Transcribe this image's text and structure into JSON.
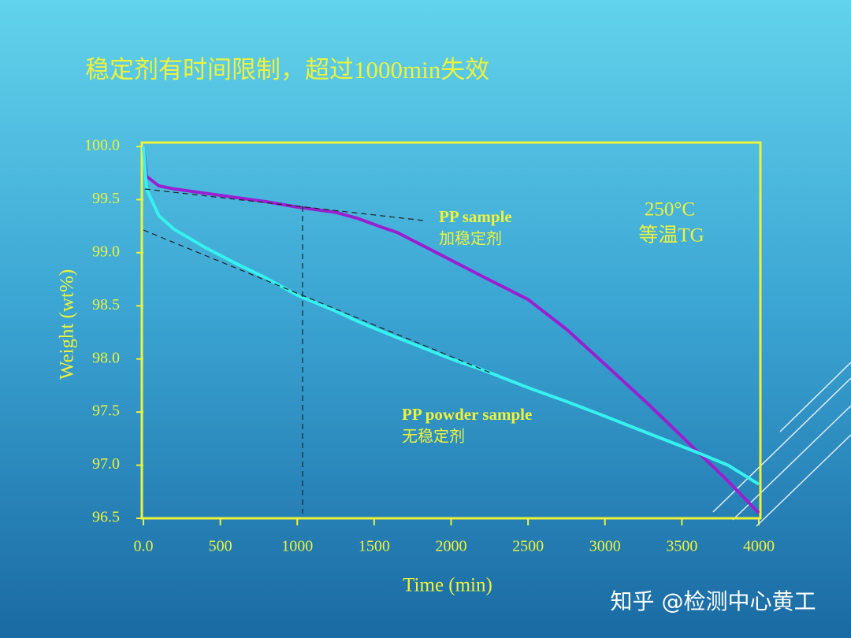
{
  "chart_data": {
    "type": "line",
    "title": "稳定剂有时间限制，超过1000min失效",
    "x_label": "Time (min)",
    "y_label": "Weight (wt%)",
    "x": [
      0,
      20,
      100,
      200,
      400,
      600,
      800,
      1000,
      1250,
      1400,
      1550,
      1650,
      2000,
      2200,
      2500,
      2750,
      3000,
      3300,
      3600,
      3800,
      4000
    ],
    "series": [
      {
        "name": "PP sample",
        "color": "#9a1fd2",
        "values": [
          100.0,
          99.72,
          99.63,
          99.6,
          99.56,
          99.52,
          99.48,
          99.43,
          99.38,
          99.32,
          99.24,
          99.19,
          98.93,
          98.78,
          98.56,
          98.28,
          97.95,
          97.55,
          97.13,
          96.85,
          96.55
        ]
      },
      {
        "name": "PP powder sample",
        "color": "#35f2ee",
        "values": [
          100.0,
          99.6,
          99.35,
          99.22,
          99.05,
          98.9,
          98.76,
          98.6,
          98.45,
          98.35,
          98.26,
          98.2,
          98.0,
          97.9,
          97.73,
          97.6,
          97.46,
          97.29,
          97.12,
          97.0,
          96.82
        ]
      }
    ],
    "series_notes": [
      "加稳定剂",
      "无稳定剂"
    ],
    "annotations": [
      "250°C",
      "等温TG"
    ],
    "xlim": [
      0,
      4000
    ],
    "ylim": [
      96.5,
      100
    ],
    "xticks": [
      {
        "value": 0,
        "label": "0.0"
      },
      500,
      1000,
      1500,
      2000,
      2500,
      3000,
      3500,
      4000
    ],
    "yticks": [
      {
        "value": 100,
        "label": "100.0"
      },
      99.5,
      {
        "value": 99,
        "label": "99.0"
      },
      98.5,
      {
        "value": 98,
        "label": "98.0"
      },
      97.5,
      {
        "value": 97,
        "label": "97.0"
      },
      96.5
    ],
    "axis_color": "#eef23a",
    "grid": false
  },
  "watermark": "知乎 @检测中心黄工"
}
